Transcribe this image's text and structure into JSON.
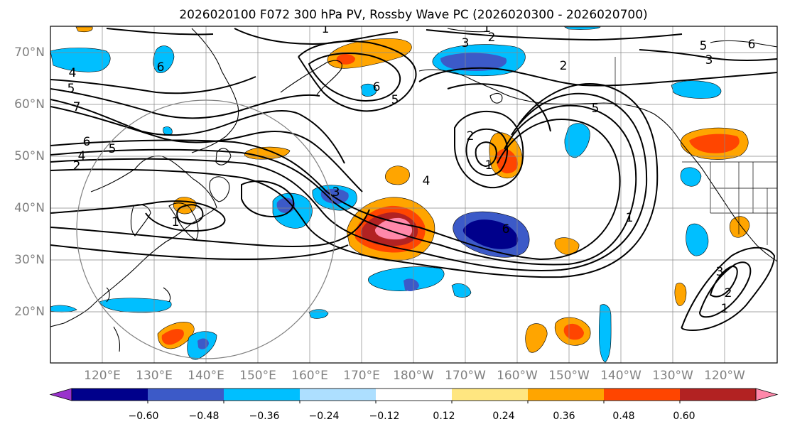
{
  "title": "2026020100 F072 300 hPa PV, Rossby Wave PC (2026020300 - 2026020700)",
  "map": {
    "lat_labels": [
      "70°N",
      "60°N",
      "50°N",
      "40°N",
      "30°N",
      "20°N"
    ],
    "lon_labels": [
      "120°E",
      "130°E",
      "140°E",
      "150°E",
      "160°E",
      "170°E",
      "180°W",
      "170°W",
      "160°W",
      "150°W",
      "140°W",
      "130°W",
      "120°W"
    ],
    "contour_labels": [
      "1",
      "2",
      "3",
      "4",
      "5",
      "6",
      "7"
    ]
  },
  "colorbar": {
    "ticks": [
      "−0.60",
      "−0.48",
      "−0.36",
      "−0.24",
      "−0.12",
      "0.12",
      "0.24",
      "0.36",
      "0.48",
      "0.60"
    ],
    "colors": [
      "#9932CC",
      "#00008B",
      "#3C5AC8",
      "#00BFFF",
      "#ADDFFF",
      "#FFFFFF",
      "#FFE680",
      "#FFA500",
      "#FF4500",
      "#B22222",
      "#FF88AA"
    ]
  },
  "colors": {
    "strong_negative": "#00008B",
    "negative": "#3C5AC8",
    "weak_negative": "#00BFFF",
    "positive": "#FFA500",
    "strong_positive": "#FF4500",
    "max_positive": "#FF88AA",
    "grid": "#888888"
  }
}
